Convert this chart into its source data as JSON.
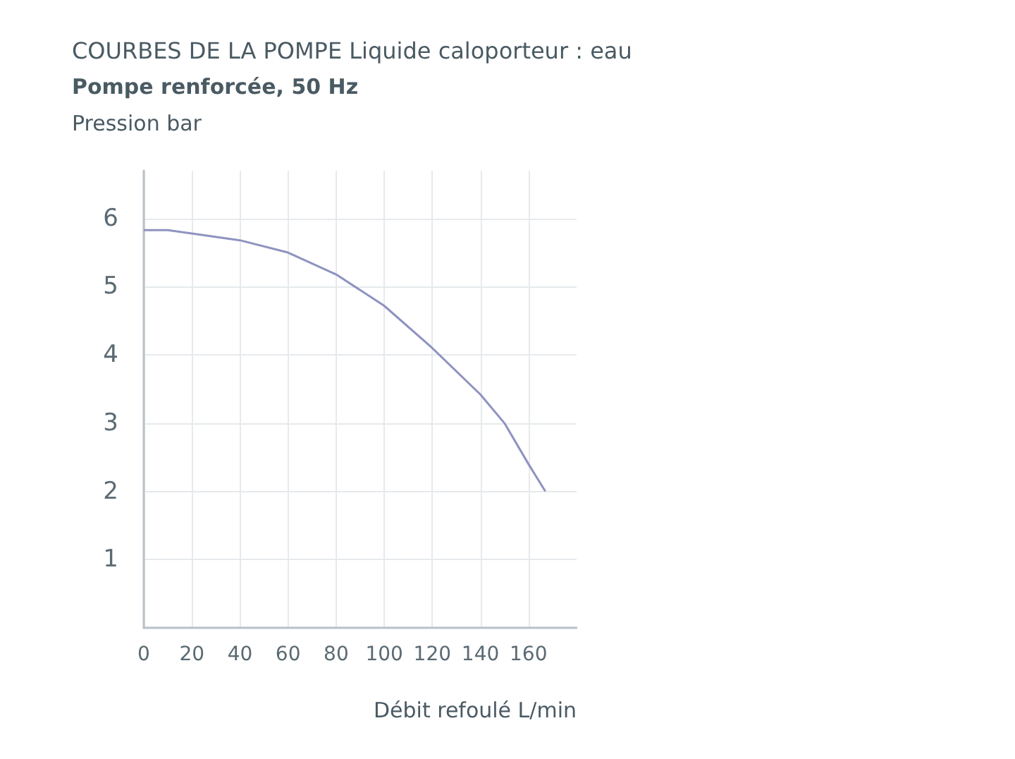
{
  "chart_data": {
    "type": "line",
    "title": "COURBES DE LA POMPE Liquide caloporteur : eau",
    "subtitle": "Pompe renforcée, 50 Hz",
    "ylabel": "Pression bar",
    "xlabel": "Débit refoulé L/min",
    "x": [
      0,
      10,
      20,
      40,
      60,
      80,
      100,
      120,
      140,
      150,
      160,
      167
    ],
    "series": [
      {
        "color": "#8e93c0",
        "values": [
          5.83,
          5.83,
          5.78,
          5.68,
          5.5,
          5.18,
          4.72,
          4.1,
          3.42,
          3.0,
          2.4,
          2.0
        ]
      }
    ],
    "xlim": [
      0,
      180
    ],
    "xticks": [
      0,
      20,
      40,
      60,
      80,
      100,
      120,
      140,
      160
    ],
    "ylim": [
      0,
      6.7
    ],
    "yticks": [
      1,
      2,
      3,
      4,
      5,
      6
    ],
    "grid": true
  }
}
